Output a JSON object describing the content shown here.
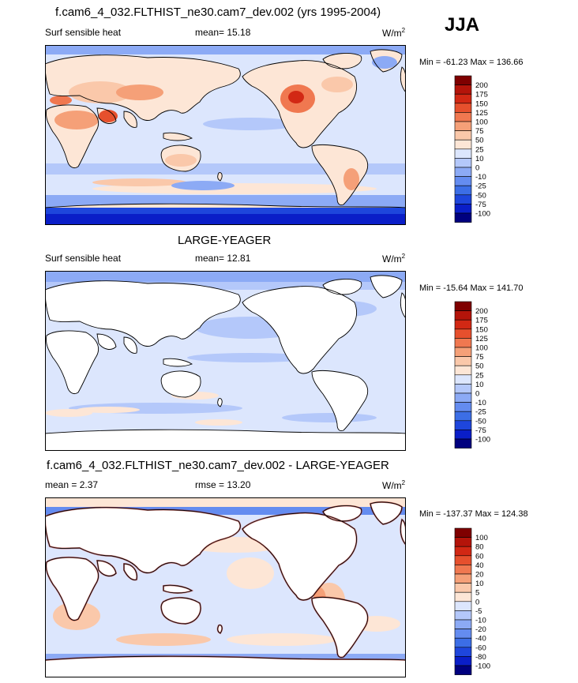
{
  "header": {
    "title": "f.cam6_4_032.FLTHIST_ne30.cam7_dev.002 (yrs 1995-2004)",
    "season": "JJA"
  },
  "colors": {
    "scale_main": [
      "#00007f",
      "#0a1ec8",
      "#1e46dc",
      "#3c6ee6",
      "#648cf0",
      "#8caaf5",
      "#b4c8fa",
      "#dce6fd",
      "#fde6d6",
      "#fac8aa",
      "#f5a078",
      "#f07850",
      "#e6502d",
      "#d22814",
      "#b4140a",
      "#7f0000"
    ],
    "scale_diff": [
      "#00007f",
      "#0a1ec8",
      "#1e46dc",
      "#3c6ee6",
      "#648cf0",
      "#8caaf5",
      "#b4c8fa",
      "#dce6fd",
      "#fde6d6",
      "#fac8aa",
      "#f5a078",
      "#f07850",
      "#e6502d",
      "#d22814",
      "#b4140a",
      "#7f0000"
    ],
    "land": "#ffffff",
    "coast": "#000000"
  },
  "chart_data": [
    {
      "type": "heatmap",
      "panel": "model",
      "variable_label": "Surf sensible heat",
      "mean_text": "mean=  15.18",
      "units_main": "W/m",
      "units_sup": "2",
      "minmax_text": "Min = -61.23 Max = 136.66",
      "colorbar_levels": [
        "200",
        "175",
        "150",
        "125",
        "100",
        "75",
        "50",
        "25",
        "10",
        "0",
        "-10",
        "-25",
        "-50",
        "-75",
        "-100"
      ]
    },
    {
      "type": "heatmap",
      "panel": "observations",
      "panel_title": "LARGE-YEAGER",
      "variable_label": "Surf sensible heat",
      "mean_text": "mean=  12.81",
      "units_main": "W/m",
      "units_sup": "2",
      "minmax_text": "Min = -15.64 Max = 141.70",
      "colorbar_levels": [
        "200",
        "175",
        "150",
        "125",
        "100",
        "75",
        "50",
        "25",
        "10",
        "0",
        "-10",
        "-25",
        "-50",
        "-75",
        "-100"
      ]
    },
    {
      "type": "heatmap",
      "panel": "difference",
      "panel_title": "f.cam6_4_032.FLTHIST_ne30.cam7_dev.002 - LARGE-YEAGER",
      "mean_text": "mean =   2.37",
      "rmse_text": "rmse =  13.20",
      "units_main": "W/m",
      "units_sup": "2",
      "minmax_text": "Min = -137.37 Max = 124.38",
      "colorbar_levels": [
        "100",
        "80",
        "60",
        "40",
        "20",
        "10",
        "5",
        "0",
        "-5",
        "-10",
        "-20",
        "-40",
        "-60",
        "-80",
        "-100"
      ]
    }
  ]
}
